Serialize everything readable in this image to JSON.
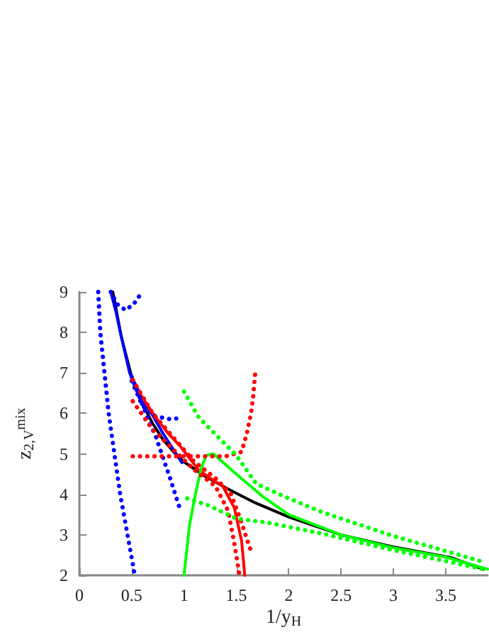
{
  "chart_data": {
    "type": "line",
    "xlabel": "1/y$_{H}$",
    "ylabel": "z$_{2,V}$$^{mix}$",
    "xlim": [
      0,
      3.9
    ],
    "ylim": [
      2,
      9
    ],
    "xticks": [
      0,
      0.5,
      1,
      1.5,
      2,
      2.5,
      3,
      3.5
    ],
    "yticks": [
      2,
      3,
      4,
      5,
      6,
      7,
      8,
      9
    ],
    "grid": false,
    "marker": "none",
    "series": [
      {
        "color": "#000000",
        "line_style": "solid",
        "x": [
          0.32,
          0.4,
          0.5,
          0.6,
          0.7,
          0.8,
          0.9,
          1.0,
          1.2,
          1.415,
          1.68,
          2.0,
          2.5,
          3.0,
          3.55,
          3.86
        ],
        "values": [
          9,
          7.9,
          6.9,
          6.25,
          5.75,
          5.35,
          5.05,
          4.8,
          4.45,
          4.14,
          3.79,
          3.44,
          3.0,
          2.7,
          2.44,
          2.15
        ]
      },
      {
        "color": "#0000ff",
        "line_style": "solid",
        "x": [
          0.3,
          0.35,
          0.4,
          0.48,
          0.6,
          0.69,
          0.8,
          0.9,
          0.98
        ],
        "values": [
          9,
          8.5,
          7.9,
          7.0,
          6.35,
          6.0,
          5.5,
          5.1,
          4.78
        ]
      },
      {
        "color": "#ff0000",
        "line_style": "solid",
        "x": [
          0.5,
          0.6,
          0.73,
          0.85,
          0.96,
          1.14,
          1.25,
          1.37,
          1.48,
          1.55,
          1.58
        ],
        "values": [
          6.9,
          6.4,
          5.9,
          5.5,
          5.2,
          4.6,
          4.4,
          4.2,
          3.67,
          2.85,
          2.0
        ]
      },
      {
        "color": "#00ff00",
        "line_style": "solid",
        "x": [
          1.0,
          1.05,
          1.1,
          1.16,
          1.21,
          1.28,
          1.5,
          1.75,
          2.0,
          2.5,
          3.0,
          3.5,
          3.9
        ],
        "values": [
          2.0,
          3.2,
          3.9,
          4.6,
          4.96,
          5.0,
          4.5,
          3.95,
          3.5,
          3.0,
          2.68,
          2.45,
          2.15
        ]
      },
      {
        "color": "#0000ff",
        "line_style": "dotted",
        "x": [
          0.18,
          0.2,
          0.28,
          0.39,
          0.46,
          0.53
        ],
        "values": [
          9,
          8.0,
          6.0,
          4.0,
          3.0,
          2.0
        ]
      },
      {
        "color": "#0000ff",
        "line_style": "dotted",
        "x": [
          0.3,
          0.36,
          0.44,
          0.52,
          0.6
        ],
        "values": [
          9,
          8.7,
          8.55,
          8.7,
          9
        ]
      },
      {
        "color": "#0000ff",
        "line_style": "dotted",
        "x": [
          0.5,
          0.6,
          0.7,
          0.78,
          0.88,
          0.98
        ],
        "values": [
          6.8,
          6.2,
          5.95,
          5.9,
          5.85,
          5.9
        ]
      },
      {
        "color": "#0000ff",
        "line_style": "dotted",
        "x": [
          0.5,
          0.65,
          0.73,
          0.8,
          0.87,
          0.96
        ],
        "values": [
          6.9,
          5.9,
          5.43,
          4.9,
          4.37,
          3.65
        ]
      },
      {
        "color": "#ff0000",
        "line_style": "dotted",
        "x": [
          0.51,
          0.8,
          1.0,
          1.2,
          1.4,
          1.55,
          1.6,
          1.64,
          1.66,
          1.68
        ],
        "values": [
          4.94,
          4.94,
          4.94,
          4.94,
          4.94,
          5.05,
          5.5,
          6.0,
          6.4,
          7.0
        ]
      },
      {
        "color": "#ff0000",
        "line_style": "dotted",
        "x": [
          0.51,
          0.7,
          0.9,
          1.1,
          1.3,
          1.45,
          1.55,
          1.6,
          1.64
        ],
        "values": [
          6.83,
          6.0,
          5.4,
          4.8,
          4.4,
          4.0,
          3.3,
          2.9,
          2.6
        ]
      },
      {
        "color": "#ff0000",
        "line_style": "dotted",
        "x": [
          0.51,
          0.7,
          0.9,
          1.1,
          1.3,
          1.42,
          1.48,
          1.53
        ],
        "values": [
          6.3,
          5.6,
          5.1,
          4.6,
          4.2,
          3.6,
          2.8,
          2.0
        ]
      },
      {
        "color": "#00ff00",
        "line_style": "dotted",
        "x": [
          1.0,
          1.14,
          1.32,
          1.5,
          1.69,
          2.0,
          2.32,
          3.0,
          3.5,
          3.86
        ],
        "values": [
          6.54,
          5.9,
          5.43,
          4.96,
          4.26,
          3.9,
          3.56,
          2.97,
          2.6,
          2.33
        ]
      },
      {
        "color": "#00ff00",
        "line_style": "dotted",
        "x": [
          1.03,
          1.23,
          1.5,
          1.8,
          2.32,
          3.0,
          3.5,
          3.86
        ],
        "values": [
          3.9,
          3.73,
          3.4,
          3.3,
          3.03,
          2.62,
          2.35,
          2.15
        ]
      }
    ]
  }
}
